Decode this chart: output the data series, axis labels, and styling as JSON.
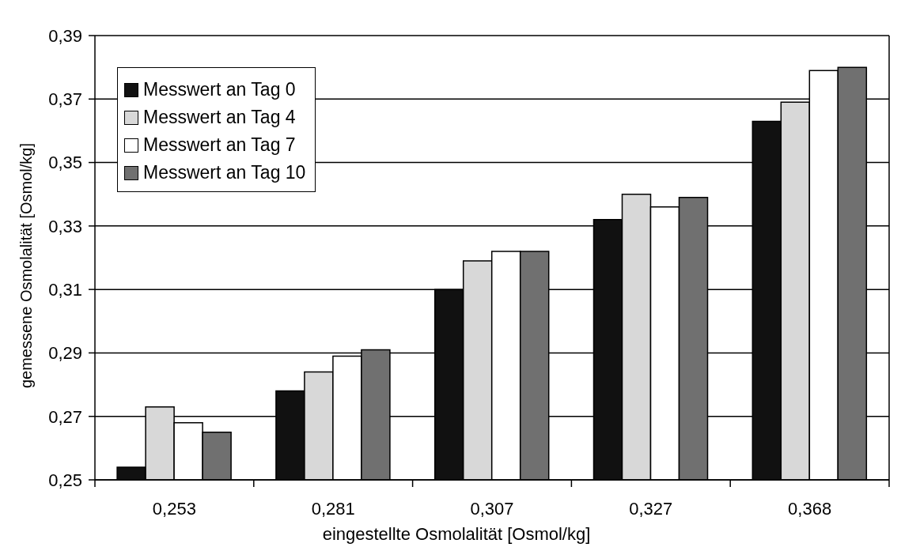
{
  "chart_data": {
    "type": "bar",
    "xlabel": "eingestellte Osmolalität [Osmol/kg]",
    "ylabel": "gemessene Osmolalität [Osmol/kg]",
    "categories": [
      "0,253",
      "0,281",
      "0,307",
      "0,327",
      "0,368"
    ],
    "series": [
      {
        "name": "Messwert an Tag 0",
        "color": "#111111",
        "values": [
          0.254,
          0.278,
          0.31,
          0.332,
          0.363
        ]
      },
      {
        "name": "Messwert an Tag 4",
        "color": "#d8d8d8",
        "values": [
          0.273,
          0.284,
          0.319,
          0.34,
          0.369
        ]
      },
      {
        "name": "Messwert an Tag 7",
        "color": "#ffffff",
        "values": [
          0.268,
          0.289,
          0.322,
          0.336,
          0.379
        ]
      },
      {
        "name": "Messwert an Tag 10",
        "color": "#707070",
        "values": [
          0.265,
          0.291,
          0.322,
          0.339,
          0.38
        ]
      }
    ],
    "ylim": [
      0.25,
      0.39
    ],
    "yticks": [
      {
        "value": 0.25,
        "label": "0,25"
      },
      {
        "value": 0.27,
        "label": "0,27"
      },
      {
        "value": 0.29,
        "label": "0,29"
      },
      {
        "value": 0.31,
        "label": "0,31"
      },
      {
        "value": 0.33,
        "label": "0,33"
      },
      {
        "value": 0.35,
        "label": "0,35"
      },
      {
        "value": 0.37,
        "label": "0,37"
      },
      {
        "value": 0.39,
        "label": "0,39"
      }
    ],
    "grid": "y",
    "legend": "top left"
  }
}
